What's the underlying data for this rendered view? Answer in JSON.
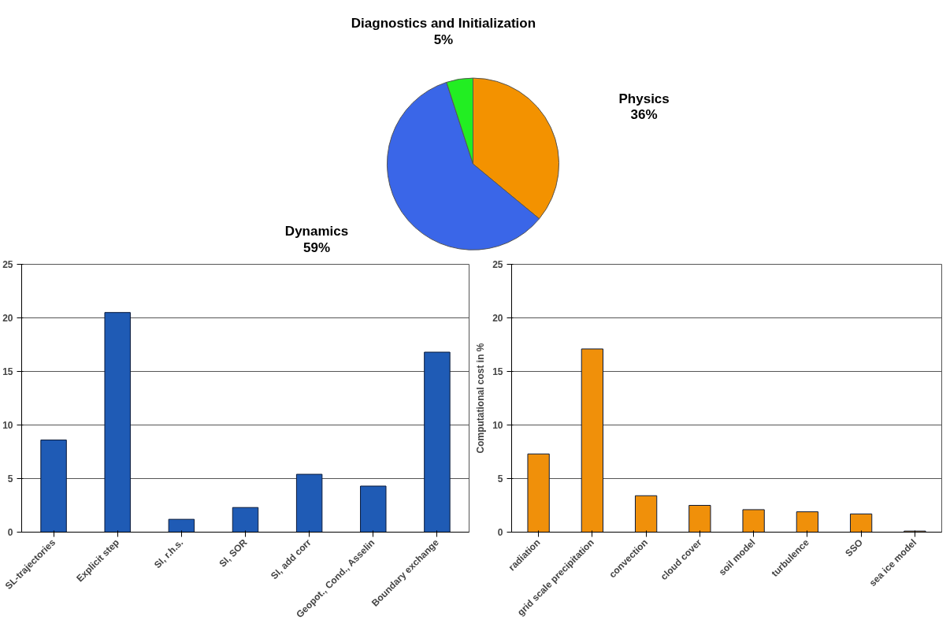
{
  "chart_data": [
    {
      "type": "pie",
      "categories": [
        "Physics",
        "Dynamics",
        "Diagnostics and Initialization"
      ],
      "values": [
        36,
        59,
        5
      ],
      "value_labels": [
        "36%",
        "59%",
        "5%"
      ],
      "colors": [
        "#f39200",
        "#3a66e8",
        "#22ee22"
      ]
    },
    {
      "type": "bar",
      "categories": [
        "SL-trajectories",
        "Explicit step",
        "SI, r.h.s.",
        "SI, SOR",
        "SI, add corr",
        "Geopot., Cond., Asselin",
        "Boundary exchange"
      ],
      "values": [
        8.6,
        20.5,
        1.2,
        2.3,
        5.4,
        4.3,
        16.8
      ],
      "color": "#1f5bb5",
      "ylim": [
        0,
        25
      ],
      "yticks": [
        0,
        5,
        10,
        15,
        20,
        25
      ],
      "grid": "y"
    },
    {
      "type": "bar",
      "ylabel": "Computational cost in %",
      "categories": [
        "radiation",
        "grid scale precipitation",
        "convection",
        "cloud cover",
        "soil model",
        "turbulence",
        "SSO",
        "sea ice model"
      ],
      "values": [
        7.3,
        17.1,
        3.4,
        2.5,
        2.1,
        1.9,
        1.7,
        0.1
      ],
      "color": "#f0900a",
      "ylim": [
        0,
        25
      ],
      "yticks": [
        0,
        5,
        10,
        15,
        20,
        25
      ],
      "grid": "y"
    }
  ]
}
